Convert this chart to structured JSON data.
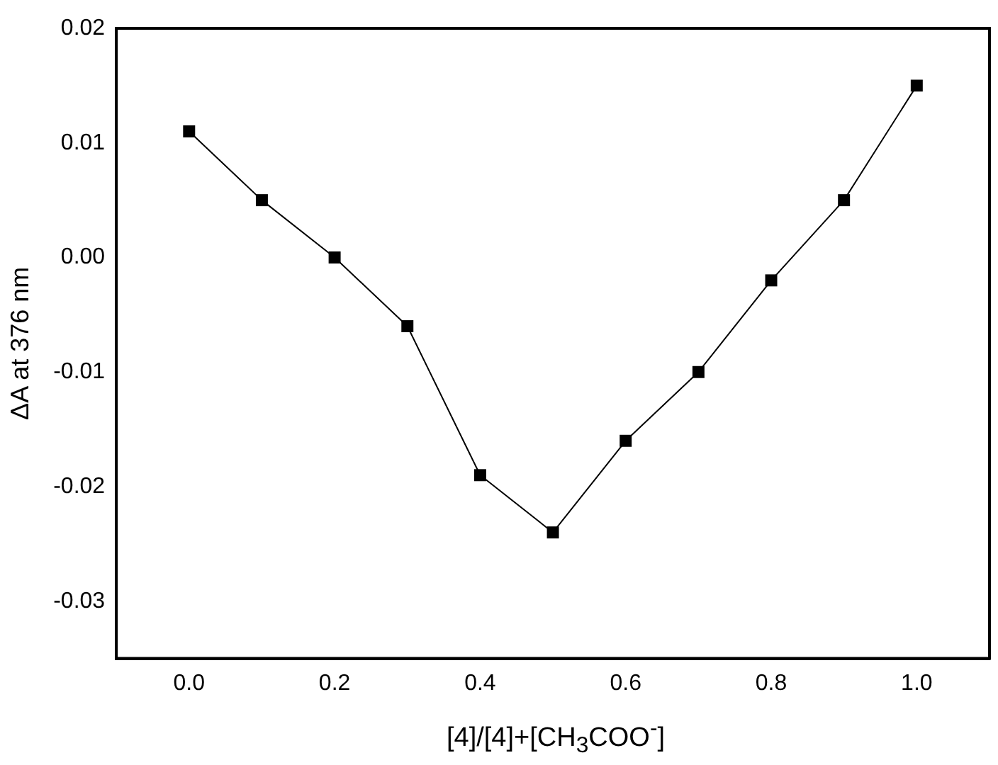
{
  "chart_data": {
    "type": "line",
    "xlabel": "[4]/[4]+[CH$_{3}$COO$^{-}$]",
    "ylabel": "ΔA at 376 nm",
    "x": [
      0.0,
      0.1,
      0.2,
      0.3,
      0.4,
      0.5,
      0.6,
      0.7,
      0.8,
      0.9,
      1.0
    ],
    "series": [
      {
        "color": "#000000",
        "values": [
          0.011,
          0.005,
          0.0,
          -0.006,
          -0.019,
          -0.024,
          -0.016,
          -0.01,
          -0.002,
          0.005,
          0.015
        ]
      }
    ],
    "xlim": [
      -0.1,
      1.1
    ],
    "ylim": [
      -0.035,
      0.02
    ],
    "xticks": [
      {
        "value": 0,
        "label": "0.0"
      },
      {
        "value": 0.2,
        "label": "0.2"
      },
      {
        "value": 0.4,
        "label": "0.4"
      },
      {
        "value": 0.6,
        "label": "0.6"
      },
      {
        "value": 0.8,
        "label": "0.8"
      },
      {
        "value": 1,
        "label": "1.0"
      }
    ],
    "yticks": [
      {
        "value": -0.03,
        "label": "-0.03"
      },
      {
        "value": -0.02,
        "label": "-0.02"
      },
      {
        "value": -0.01,
        "label": "-0.01"
      },
      {
        "value": 0,
        "label": "0.00"
      },
      {
        "value": 0.01,
        "label": "0.01"
      },
      {
        "value": 0.02,
        "label": "0.02"
      }
    ],
    "marker": "square",
    "line_style": "solid",
    "grid": false,
    "legend": false
  }
}
